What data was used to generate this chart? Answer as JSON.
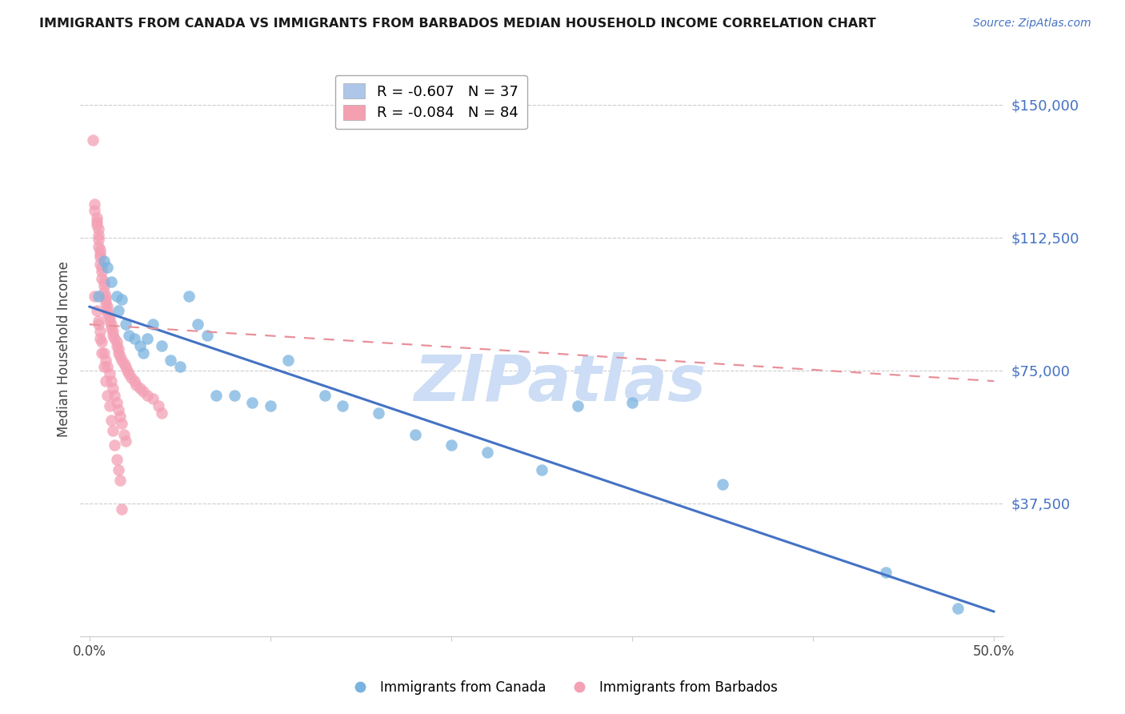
{
  "title": "IMMIGRANTS FROM CANADA VS IMMIGRANTS FROM BARBADOS MEDIAN HOUSEHOLD INCOME CORRELATION CHART",
  "source": "Source: ZipAtlas.com",
  "ylabel_label": "Median Household Income",
  "x_ticks": [
    0.0,
    0.1,
    0.2,
    0.3,
    0.4,
    0.5
  ],
  "x_tick_labels": [
    "0.0%",
    "",
    "",
    "",
    "",
    "50.0%"
  ],
  "y_ticks": [
    0,
    37500,
    75000,
    112500,
    150000
  ],
  "y_tick_labels": [
    "",
    "$37,500",
    "$75,000",
    "$112,500",
    "$150,000"
  ],
  "xlim": [
    -0.005,
    0.505
  ],
  "ylim": [
    0,
    162000
  ],
  "legend_entries": [
    {
      "label": "R = -0.607   N = 37",
      "color": "#aec6e8"
    },
    {
      "label": "R = -0.084   N = 84",
      "color": "#f4a0b0"
    }
  ],
  "canada_color": "#7ab3e0",
  "barbados_color": "#f4a0b5",
  "canada_line_color": "#4472c4",
  "barbados_line_color": "#e8909a",
  "watermark_text": "ZIPatlas",
  "watermark_color": "#ccddf5",
  "canada_scatter_x": [
    0.005,
    0.008,
    0.01,
    0.012,
    0.015,
    0.016,
    0.018,
    0.02,
    0.022,
    0.025,
    0.028,
    0.03,
    0.032,
    0.035,
    0.04,
    0.045,
    0.05,
    0.055,
    0.06,
    0.065,
    0.07,
    0.08,
    0.09,
    0.1,
    0.11,
    0.13,
    0.14,
    0.16,
    0.18,
    0.2,
    0.22,
    0.25,
    0.27,
    0.3,
    0.35,
    0.44,
    0.48
  ],
  "canada_scatter_y": [
    96000,
    106000,
    104000,
    100000,
    96000,
    92000,
    95000,
    88000,
    85000,
    84000,
    82000,
    80000,
    84000,
    88000,
    82000,
    78000,
    76000,
    96000,
    88000,
    85000,
    68000,
    68000,
    66000,
    65000,
    78000,
    68000,
    65000,
    63000,
    57000,
    54000,
    52000,
    47000,
    65000,
    66000,
    43000,
    18000,
    8000
  ],
  "barbados_scatter_x": [
    0.002,
    0.003,
    0.003,
    0.004,
    0.004,
    0.004,
    0.005,
    0.005,
    0.005,
    0.005,
    0.006,
    0.006,
    0.006,
    0.006,
    0.007,
    0.007,
    0.007,
    0.008,
    0.008,
    0.008,
    0.009,
    0.009,
    0.009,
    0.01,
    0.01,
    0.01,
    0.011,
    0.011,
    0.012,
    0.012,
    0.013,
    0.013,
    0.014,
    0.015,
    0.015,
    0.016,
    0.016,
    0.017,
    0.018,
    0.019,
    0.02,
    0.021,
    0.022,
    0.023,
    0.025,
    0.026,
    0.028,
    0.03,
    0.032,
    0.035,
    0.038,
    0.04,
    0.005,
    0.006,
    0.007,
    0.008,
    0.009,
    0.01,
    0.011,
    0.012,
    0.013,
    0.014,
    0.015,
    0.016,
    0.017,
    0.018,
    0.019,
    0.02,
    0.003,
    0.004,
    0.005,
    0.006,
    0.007,
    0.008,
    0.009,
    0.01,
    0.011,
    0.012,
    0.013,
    0.014,
    0.015,
    0.016,
    0.017,
    0.018
  ],
  "barbados_scatter_y": [
    140000,
    122000,
    120000,
    118000,
    117000,
    116000,
    115000,
    113000,
    112000,
    110000,
    109000,
    108000,
    107000,
    105000,
    104000,
    103000,
    101000,
    100000,
    99000,
    97000,
    96000,
    95000,
    94000,
    93000,
    92000,
    91000,
    90000,
    89000,
    88000,
    87000,
    86000,
    85000,
    84000,
    83000,
    82000,
    81000,
    80000,
    79000,
    78000,
    77000,
    76000,
    75000,
    74000,
    73000,
    72000,
    71000,
    70000,
    69000,
    68000,
    67000,
    65000,
    63000,
    89000,
    86000,
    83000,
    80000,
    78000,
    76000,
    74000,
    72000,
    70000,
    68000,
    66000,
    64000,
    62000,
    60000,
    57000,
    55000,
    96000,
    92000,
    88000,
    84000,
    80000,
    76000,
    72000,
    68000,
    65000,
    61000,
    58000,
    54000,
    50000,
    47000,
    44000,
    36000
  ],
  "canada_line_x": [
    0.0,
    0.5
  ],
  "canada_line_y": [
    93000,
    7000
  ],
  "barbados_line_x": [
    0.0,
    0.5
  ],
  "barbados_line_y": [
    88000,
    72000
  ]
}
